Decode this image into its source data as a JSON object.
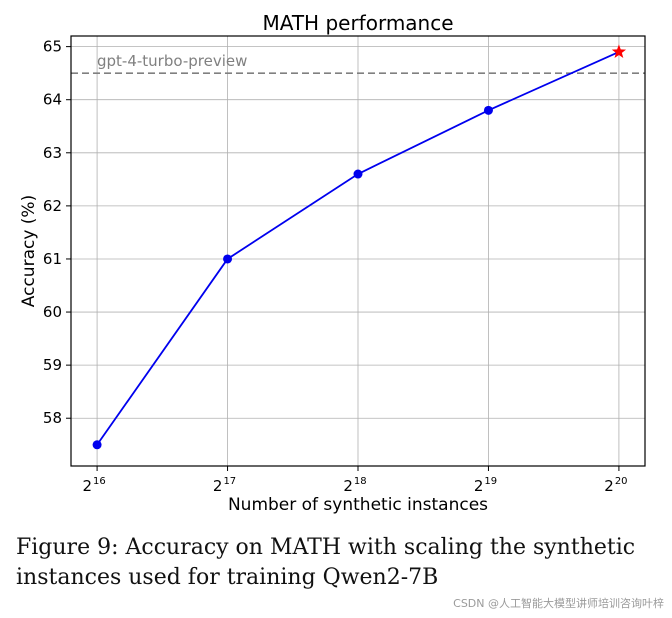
{
  "chart_data": {
    "type": "line",
    "title": "MATH performance",
    "xlabel": "Number of synthetic instances",
    "ylabel": "Accuracy (%)",
    "x_exponents": [
      16,
      17,
      18,
      19,
      20
    ],
    "x_tick_base": "2",
    "x_tick_exponents": [
      "16",
      "17",
      "18",
      "19",
      "20"
    ],
    "y_ticks": [
      "58",
      "59",
      "60",
      "61",
      "62",
      "63",
      "64",
      "65"
    ],
    "ylim": [
      57.1,
      65.2
    ],
    "xlim": [
      15.8,
      20.2
    ],
    "grid": true,
    "series": [
      {
        "values": [
          57.5,
          61.0,
          62.6,
          63.8,
          64.9
        ],
        "color": "#0000ee",
        "marker": "circle"
      }
    ],
    "highlight_point": {
      "x_exponent": 20,
      "value": 64.9,
      "color": "#ff0000",
      "marker": "star"
    },
    "reference_line": {
      "label": "gpt-4-turbo-preview",
      "value": 64.5,
      "color": "#808080",
      "style": "dashed"
    }
  },
  "caption": "Figure 9: Accuracy on MATH with scaling the synthetic instances used for training Qwen2-7B",
  "watermark": "CSDN @人工智能大模型讲师培训咨询叶梓"
}
